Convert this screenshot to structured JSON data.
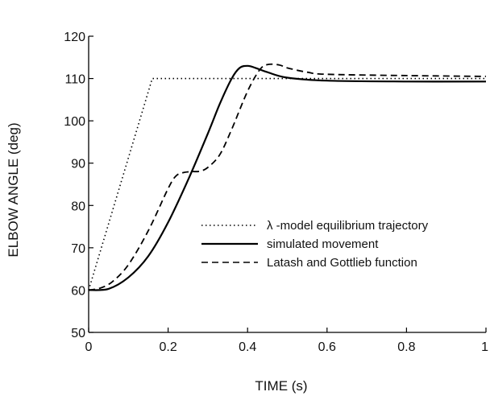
{
  "chart_data": {
    "type": "line",
    "title": "",
    "xlabel": "TIME (s)",
    "ylabel": "ELBOW ANGLE (deg)",
    "xlim": [
      0,
      1
    ],
    "ylim": [
      50,
      120
    ],
    "x_ticks": [
      0,
      0.2,
      0.4,
      0.6,
      0.8,
      1
    ],
    "x_tick_labels": [
      "0",
      "0.2",
      "0.4",
      "0.6",
      "0.8",
      "1"
    ],
    "y_ticks": [
      50,
      60,
      70,
      80,
      90,
      100,
      110,
      120
    ],
    "y_tick_labels": [
      "50",
      "60",
      "70",
      "80",
      "90",
      "100",
      "110",
      "120"
    ],
    "grid": false,
    "legend_position": "lower-right",
    "series": [
      {
        "name": "λ -model equilibrium trajectory",
        "style": "dotted",
        "x": [
          0,
          0.16,
          1
        ],
        "y": [
          60,
          110,
          110
        ]
      },
      {
        "name": "simulated movement",
        "style": "solid",
        "x": [
          0,
          0.05,
          0.1,
          0.15,
          0.2,
          0.25,
          0.3,
          0.33,
          0.36,
          0.38,
          0.4,
          0.42,
          0.45,
          0.5,
          0.6,
          0.8,
          1
        ],
        "y": [
          60,
          60.3,
          63,
          68,
          76,
          86,
          97,
          104,
          110,
          112.5,
          113,
          112.5,
          111.5,
          110.2,
          109.5,
          109.3,
          109.3
        ],
        "color": "#000000"
      },
      {
        "name": "Latash and Gottlieb function",
        "style": "dashed",
        "x": [
          0,
          0.03,
          0.06,
          0.1,
          0.15,
          0.2,
          0.22,
          0.24,
          0.26,
          0.28,
          0.3,
          0.33,
          0.36,
          0.4,
          0.43,
          0.45,
          0.48,
          0.5,
          0.55,
          0.6,
          0.8,
          1
        ],
        "y": [
          60,
          60.5,
          62,
          66,
          74,
          84,
          87,
          87.8,
          88,
          88.1,
          89,
          92,
          98,
          107,
          112,
          113.3,
          113.2,
          112.5,
          111.5,
          111,
          110.7,
          110.5
        ]
      }
    ]
  }
}
